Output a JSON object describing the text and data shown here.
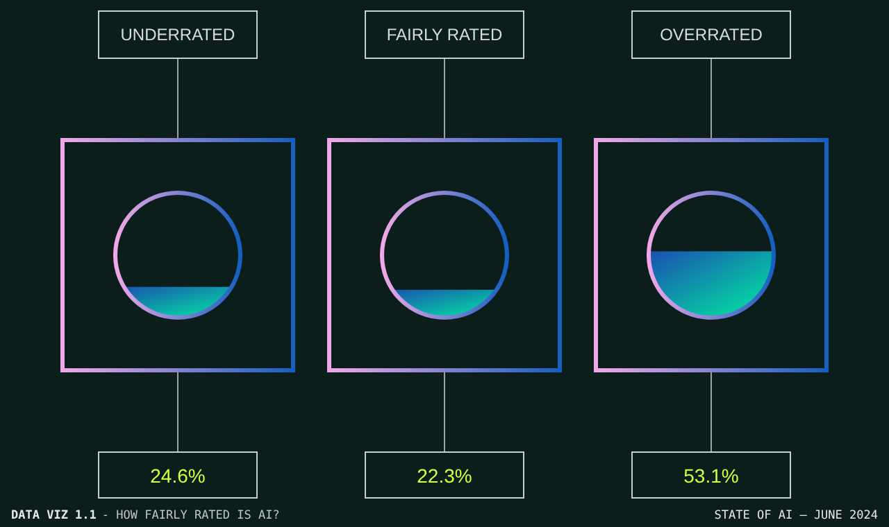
{
  "chart_data": {
    "type": "other",
    "title": "DATA VIZ 1.1",
    "subtitle": "- HOW FAIRLY RATED IS AI?",
    "categories": [
      "UNDERRATED",
      "FAIRLY RATED",
      "OVERRATED"
    ],
    "values": [
      24.6,
      22.3,
      53.1
    ],
    "value_labels": [
      "24.6%",
      "22.3%",
      "53.1%"
    ],
    "annotations": [
      "STATE OF AI — JUNE 2024"
    ]
  }
}
